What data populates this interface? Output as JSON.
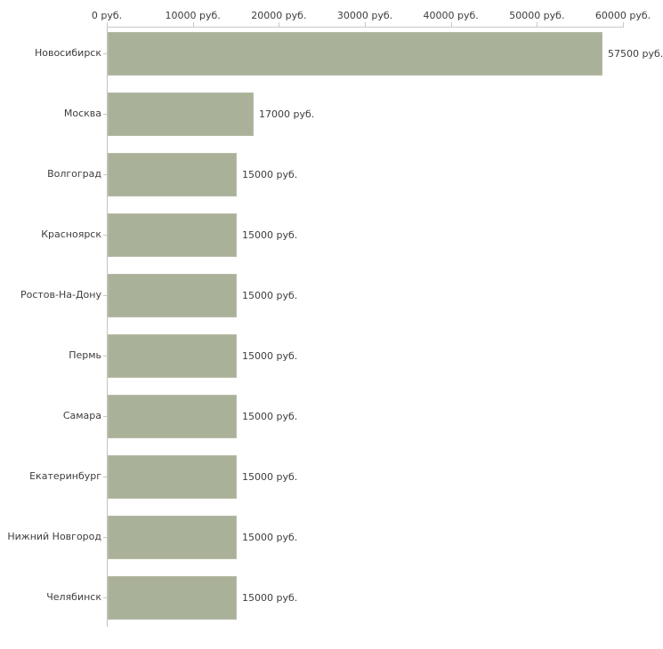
{
  "chart_data": {
    "type": "bar",
    "orientation": "horizontal",
    "title": "",
    "xlabel": "",
    "ylabel": "",
    "unit": "руб.",
    "categories": [
      "Новосибирск",
      "Москва",
      "Волгоград",
      "Красноярск",
      "Ростов-На-Дону",
      "Пермь",
      "Самара",
      "Екатеринбург",
      "Нижний Новгород",
      "Челябинск"
    ],
    "values": [
      57500,
      17000,
      15000,
      15000,
      15000,
      15000,
      15000,
      15000,
      15000,
      15000
    ],
    "value_labels": [
      "57500 руб.",
      "17000 руб.",
      "15000 руб.",
      "15000 руб.",
      "15000 руб.",
      "15000 руб.",
      "15000 руб.",
      "15000 руб.",
      "15000 руб.",
      "15000 руб."
    ],
    "x_ticks": [
      0,
      10000,
      20000,
      30000,
      40000,
      50000,
      60000
    ],
    "x_tick_labels": [
      "0 руб.",
      "10000 руб.",
      "20000 руб.",
      "30000 руб.",
      "40000 руб.",
      "50000 руб.",
      "60000 руб."
    ],
    "xlim": [
      0,
      60000
    ],
    "grid": false,
    "legend": false
  },
  "colors": {
    "bar_fill": "#aab199",
    "bar_border": "#b8bda8",
    "axis_line": "#c2c2c2",
    "tick": "#c9ccba",
    "text": "#3d3d3d",
    "background": "#ffffff"
  }
}
